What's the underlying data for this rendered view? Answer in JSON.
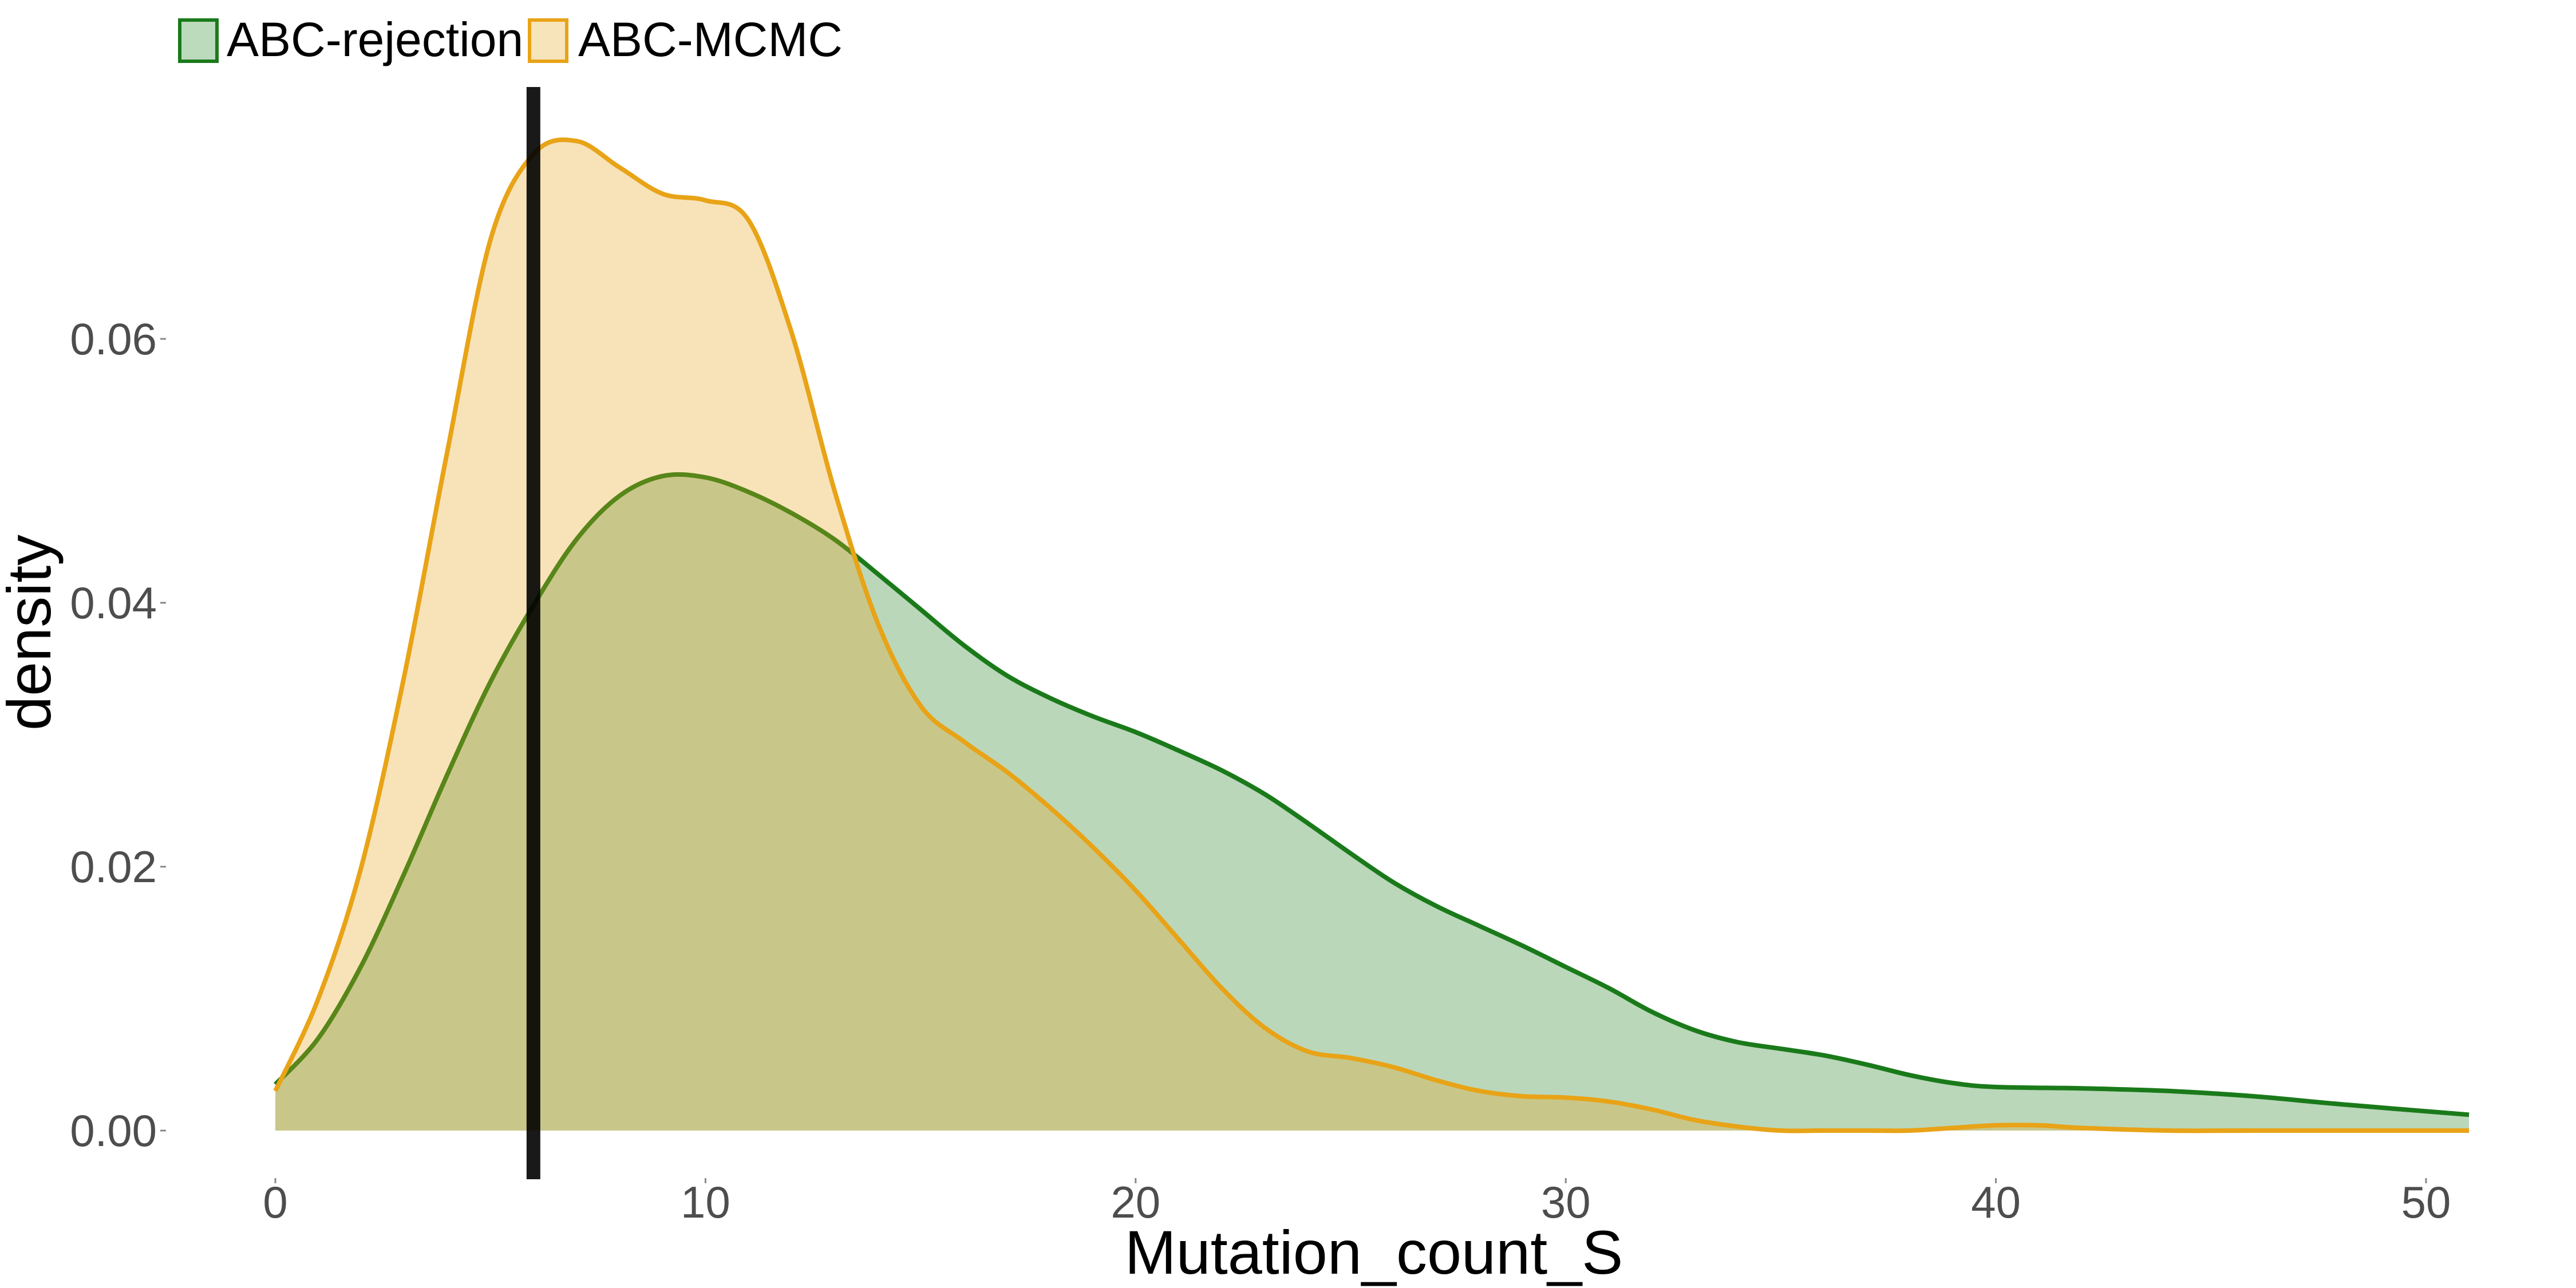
{
  "chart_data": {
    "type": "area",
    "title": "",
    "xlabel": "Mutation_count_S",
    "ylabel": "density",
    "xlim": [
      0,
      51
    ],
    "ylim": [
      0,
      0.075
    ],
    "x_ticks": [
      0,
      10,
      20,
      30,
      40,
      50
    ],
    "x_tick_labels": [
      "0",
      "10",
      "20",
      "30",
      "40",
      "50"
    ],
    "y_ticks": [
      0,
      0.02,
      0.04,
      0.06
    ],
    "y_tick_labels": [
      "0.00",
      "0.02",
      "0.04",
      "0.06"
    ],
    "grid": false,
    "legend": {
      "position": "top-left",
      "direction": "horizontal"
    },
    "vline": {
      "x": 6,
      "color": "#000000"
    },
    "series": [
      {
        "name": "ABC-rejection",
        "color": "#1a7a1a",
        "fill": "#bcdabc",
        "x": [
          0,
          1,
          2,
          3,
          4,
          5,
          6,
          7,
          8,
          9,
          10,
          11,
          12,
          13,
          14,
          15,
          16,
          17,
          18,
          19,
          20,
          21,
          22,
          23,
          24,
          25,
          26,
          27,
          28,
          29,
          30,
          31,
          32,
          33,
          34,
          35,
          36,
          37,
          38,
          39,
          40,
          42,
          44,
          46,
          48,
          51
        ],
        "y": [
          0.0035,
          0.007,
          0.0125,
          0.0195,
          0.027,
          0.034,
          0.0398,
          0.0448,
          0.0481,
          0.0496,
          0.0495,
          0.0484,
          0.0468,
          0.0448,
          0.0422,
          0.0395,
          0.0368,
          0.0345,
          0.0328,
          0.0314,
          0.0302,
          0.0288,
          0.0273,
          0.0255,
          0.0233,
          0.021,
          0.0188,
          0.017,
          0.0155,
          0.014,
          0.0124,
          0.0108,
          0.009,
          0.0076,
          0.0067,
          0.0062,
          0.0057,
          0.005,
          0.0042,
          0.0036,
          0.0033,
          0.0032,
          0.003,
          0.0026,
          0.002,
          0.0012
        ]
      },
      {
        "name": "ABC-MCMC",
        "color": "#e8a317",
        "fill": "#f8e4bb",
        "x": [
          0,
          1,
          2,
          3,
          4,
          5,
          6,
          7,
          8,
          9,
          10,
          11,
          12,
          13,
          14,
          15,
          16,
          17,
          18,
          19,
          20,
          21,
          22,
          23,
          24,
          25,
          26,
          27,
          28,
          29,
          30,
          31,
          32,
          33,
          34,
          35,
          36,
          37,
          38,
          39,
          40,
          41,
          42,
          44,
          46,
          48,
          51
        ],
        "y": [
          0.003,
          0.01,
          0.02,
          0.0345,
          0.0515,
          0.0675,
          0.074,
          0.075,
          0.073,
          0.071,
          0.0705,
          0.069,
          0.0605,
          0.0485,
          0.0385,
          0.0322,
          0.0295,
          0.0272,
          0.0245,
          0.0215,
          0.0182,
          0.0145,
          0.0108,
          0.0078,
          0.006,
          0.0055,
          0.0048,
          0.0038,
          0.003,
          0.0026,
          0.0025,
          0.0022,
          0.0016,
          0.0008,
          0.0003,
          0.0,
          0.0,
          0.0,
          0.0,
          0.0002,
          0.0004,
          0.0004,
          0.0002,
          0.0,
          0.0,
          0.0,
          0.0
        ]
      }
    ]
  }
}
